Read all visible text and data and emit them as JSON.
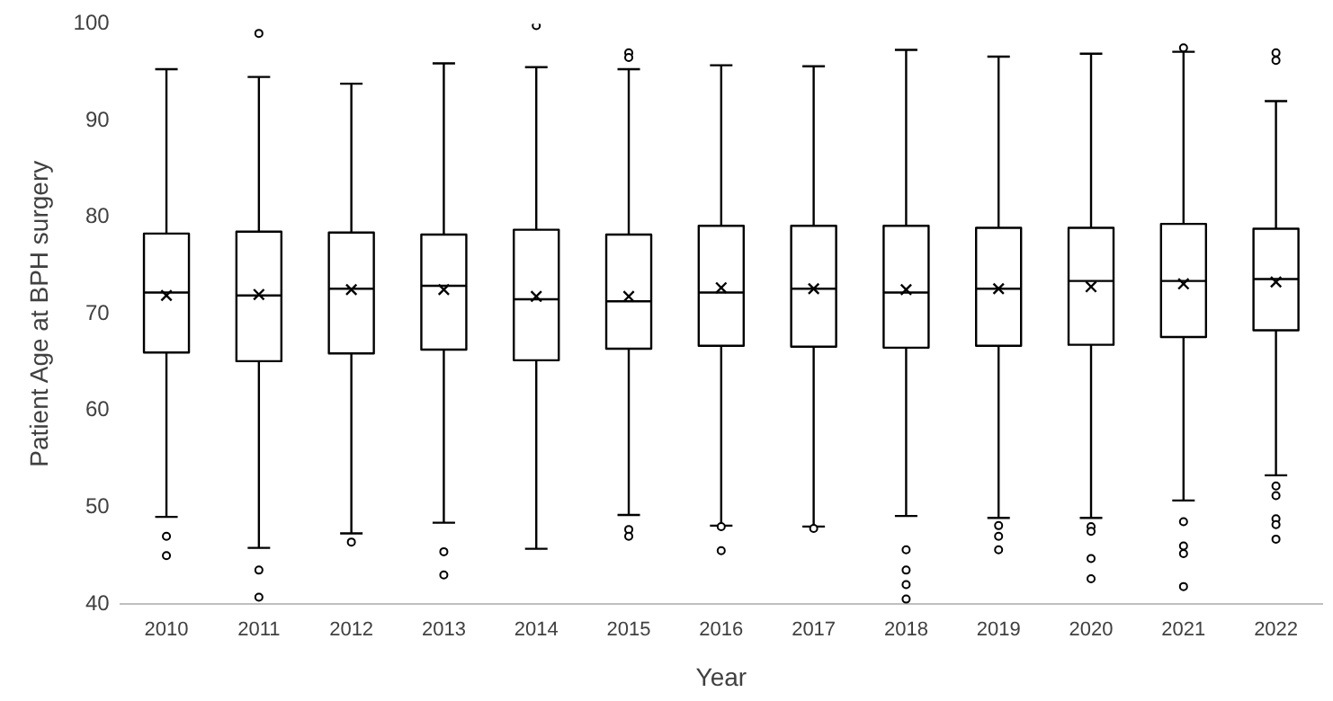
{
  "chart_data": {
    "type": "box",
    "xlabel": "Year",
    "ylabel": "Patient Age at BPH surgery",
    "categories": [
      "2010",
      "2011",
      "2012",
      "2013",
      "2014",
      "2015",
      "2016",
      "2017",
      "2018",
      "2019",
      "2020",
      "2021",
      "2022"
    ],
    "boxes": [
      {
        "low": 49,
        "q1": 66,
        "median": 72.2,
        "q3": 78.3,
        "high": 95.3,
        "mean": 71.9,
        "outliers": [
          47,
          45
        ]
      },
      {
        "low": 45.8,
        "q1": 65.1,
        "median": 71.9,
        "q3": 78.5,
        "high": 94.5,
        "mean": 72,
        "outliers": [
          99,
          43.5,
          40.7
        ]
      },
      {
        "low": 47.3,
        "q1": 65.9,
        "median": 72.6,
        "q3": 78.4,
        "high": 93.8,
        "mean": 72.5,
        "outliers": [
          46.4
        ]
      },
      {
        "low": 48.4,
        "q1": 66.3,
        "median": 72.9,
        "q3": 78.2,
        "high": 95.9,
        "mean": 72.5,
        "outliers": [
          45.4,
          43
        ]
      },
      {
        "low": 45.7,
        "q1": 65.2,
        "median": 71.5,
        "q3": 78.7,
        "high": 95.5,
        "mean": 71.8,
        "outliers": [
          99.8
        ]
      },
      {
        "low": 49.2,
        "q1": 66.4,
        "median": 71.3,
        "q3": 78.2,
        "high": 95.3,
        "mean": 71.8,
        "outliers": [
          97,
          96.5,
          47.7,
          47
        ]
      },
      {
        "low": 48.1,
        "q1": 66.7,
        "median": 72.2,
        "q3": 79.1,
        "high": 95.7,
        "mean": 72.7,
        "outliers": [
          48,
          45.5
        ]
      },
      {
        "low": 48,
        "q1": 66.6,
        "median": 72.6,
        "q3": 79.1,
        "high": 95.6,
        "mean": 72.6,
        "outliers": [
          47.8
        ]
      },
      {
        "low": 49.1,
        "q1": 66.5,
        "median": 72.2,
        "q3": 79.1,
        "high": 97.3,
        "mean": 72.5,
        "outliers": [
          45.6,
          43.5,
          42,
          40.5
        ]
      },
      {
        "low": 48.9,
        "q1": 66.7,
        "median": 72.6,
        "q3": 78.9,
        "high": 96.6,
        "mean": 72.6,
        "outliers": [
          48.1,
          47,
          45.6
        ]
      },
      {
        "low": 48.9,
        "q1": 66.8,
        "median": 73.4,
        "q3": 78.9,
        "high": 96.9,
        "mean": 72.8,
        "outliers": [
          48,
          47.5,
          44.7,
          42.6
        ]
      },
      {
        "low": 50.7,
        "q1": 67.6,
        "median": 73.4,
        "q3": 79.3,
        "high": 97.1,
        "mean": 73.1,
        "outliers": [
          97.5,
          48.5,
          46,
          45.2,
          41.8
        ]
      },
      {
        "low": 53.3,
        "q1": 68.3,
        "median": 73.6,
        "q3": 78.8,
        "high": 92,
        "mean": 73.3,
        "outliers": [
          97,
          96.2,
          52.2,
          51.2,
          48.8,
          48.2,
          46.7
        ]
      }
    ],
    "color": "#000000",
    "ylim": [
      40,
      100
    ],
    "yticks": [
      40,
      50,
      60,
      70,
      80,
      90,
      100
    ],
    "grid": false,
    "legend": false,
    "marker": "cross"
  }
}
